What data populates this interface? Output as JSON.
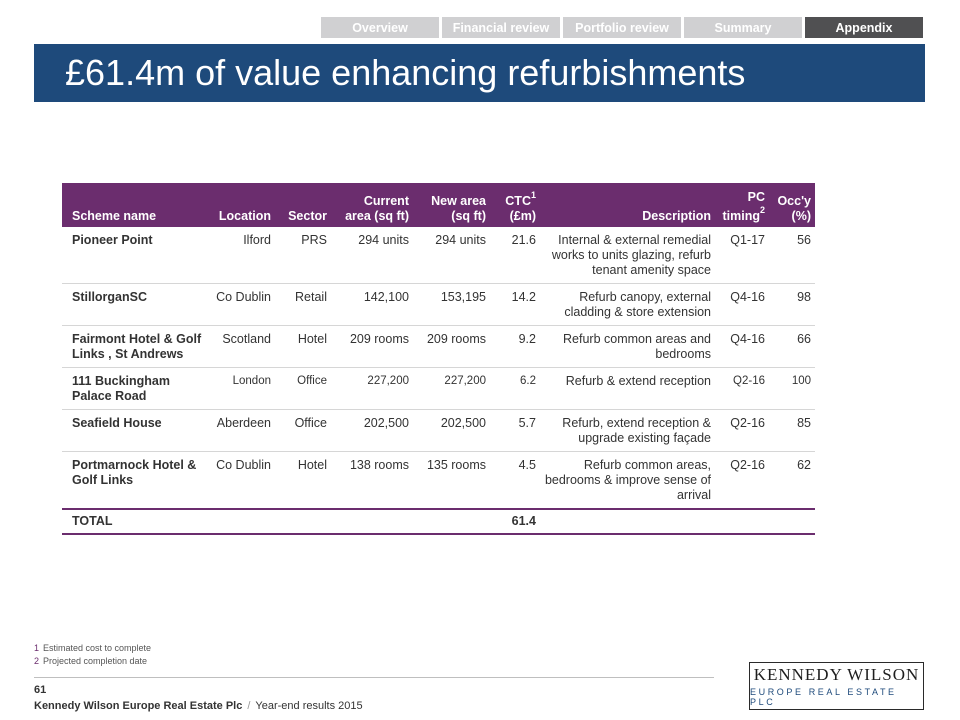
{
  "nav": {
    "tabs": [
      {
        "label": "Overview",
        "active": false
      },
      {
        "label": "Financial review",
        "active": false
      },
      {
        "label": "Portfolio review",
        "active": false
      },
      {
        "label": "Summary",
        "active": false
      },
      {
        "label": "Appendix",
        "active": true
      }
    ]
  },
  "title": "£61.4m of value enhancing refurbishments",
  "table": {
    "headers": {
      "scheme": "Scheme name",
      "location": "Location",
      "sector": "Sector",
      "current_area_line1": "Current",
      "current_area_line2": "area (sq ft)",
      "new_area_line1": "New area",
      "new_area_line2": "(sq ft)",
      "ctc_line1": "CTC",
      "ctc_sup": "1",
      "ctc_line2": "(£m)",
      "description": "Description",
      "pc_line1": "PC",
      "pc_line2": "timing",
      "pc_sup": "2",
      "occ_line1": "Occ'y",
      "occ_line2": "(%)"
    },
    "rows": [
      {
        "scheme": "Pioneer Point",
        "location": "Ilford",
        "sector": "PRS",
        "current_area": "294 units",
        "new_area": "294 units",
        "ctc": "21.6",
        "description": "Internal & external remedial works to units glazing, refurb tenant amenity space",
        "pc_timing": "Q1-17",
        "occupancy": "56"
      },
      {
        "scheme": "StillorganSC",
        "location": "Co Dublin",
        "sector": "Retail",
        "current_area": "142,100",
        "new_area": "153,195",
        "ctc": "14.2",
        "description": "Refurb canopy, external cladding & store extension",
        "pc_timing": "Q4-16",
        "occupancy": "98"
      },
      {
        "scheme": "Fairmont Hotel  & Golf Links , St Andrews",
        "location": "Scotland",
        "sector": "Hotel",
        "current_area": "209 rooms",
        "new_area": "209 rooms",
        "ctc": "9.2",
        "description": "Refurb common areas and bedrooms",
        "pc_timing": "Q4-16",
        "occupancy": "66"
      },
      {
        "scheme": "111 Buckingham Palace Road",
        "location": "London",
        "sector": "Office",
        "current_area": "227,200",
        "new_area": "227,200",
        "ctc": "6.2",
        "description": "Refurb & extend reception",
        "pc_timing": "Q2-16",
        "occupancy": "100"
      },
      {
        "scheme": "Seafield House",
        "location": "Aberdeen",
        "sector": "Office",
        "current_area": "202,500",
        "new_area": "202,500",
        "ctc": "5.7",
        "description": "Refurb, extend reception & upgrade existing façade",
        "pc_timing": "Q2-16",
        "occupancy": "85"
      },
      {
        "scheme": "Portmarnock  Hotel & Golf Links",
        "location": "Co Dublin",
        "sector": "Hotel",
        "current_area": "138 rooms",
        "new_area": "135 rooms",
        "ctc": "4.5",
        "description": "Refurb common areas, bedrooms & improve sense of arrival",
        "pc_timing": "Q2-16",
        "occupancy": "62"
      }
    ],
    "total": {
      "label": "TOTAL",
      "ctc": "61.4"
    }
  },
  "footnotes": [
    {
      "num": "1",
      "text": "Estimated cost to complete"
    },
    {
      "num": "2",
      "text": "Projected completion date"
    }
  ],
  "footer": {
    "page_number": "61",
    "company": "Kennedy Wilson Europe Real Estate Plc",
    "separator": "/",
    "doc": "Year-end results 2015"
  },
  "logo": {
    "main": "KENNEDY WILSON",
    "sub": "EUROPE REAL ESTATE PLC"
  },
  "colors": {
    "title_band": "#1e4a7b",
    "table_header": "#6b2d6e",
    "nav_inactive": "#d0d0d2",
    "nav_active": "#505052"
  }
}
